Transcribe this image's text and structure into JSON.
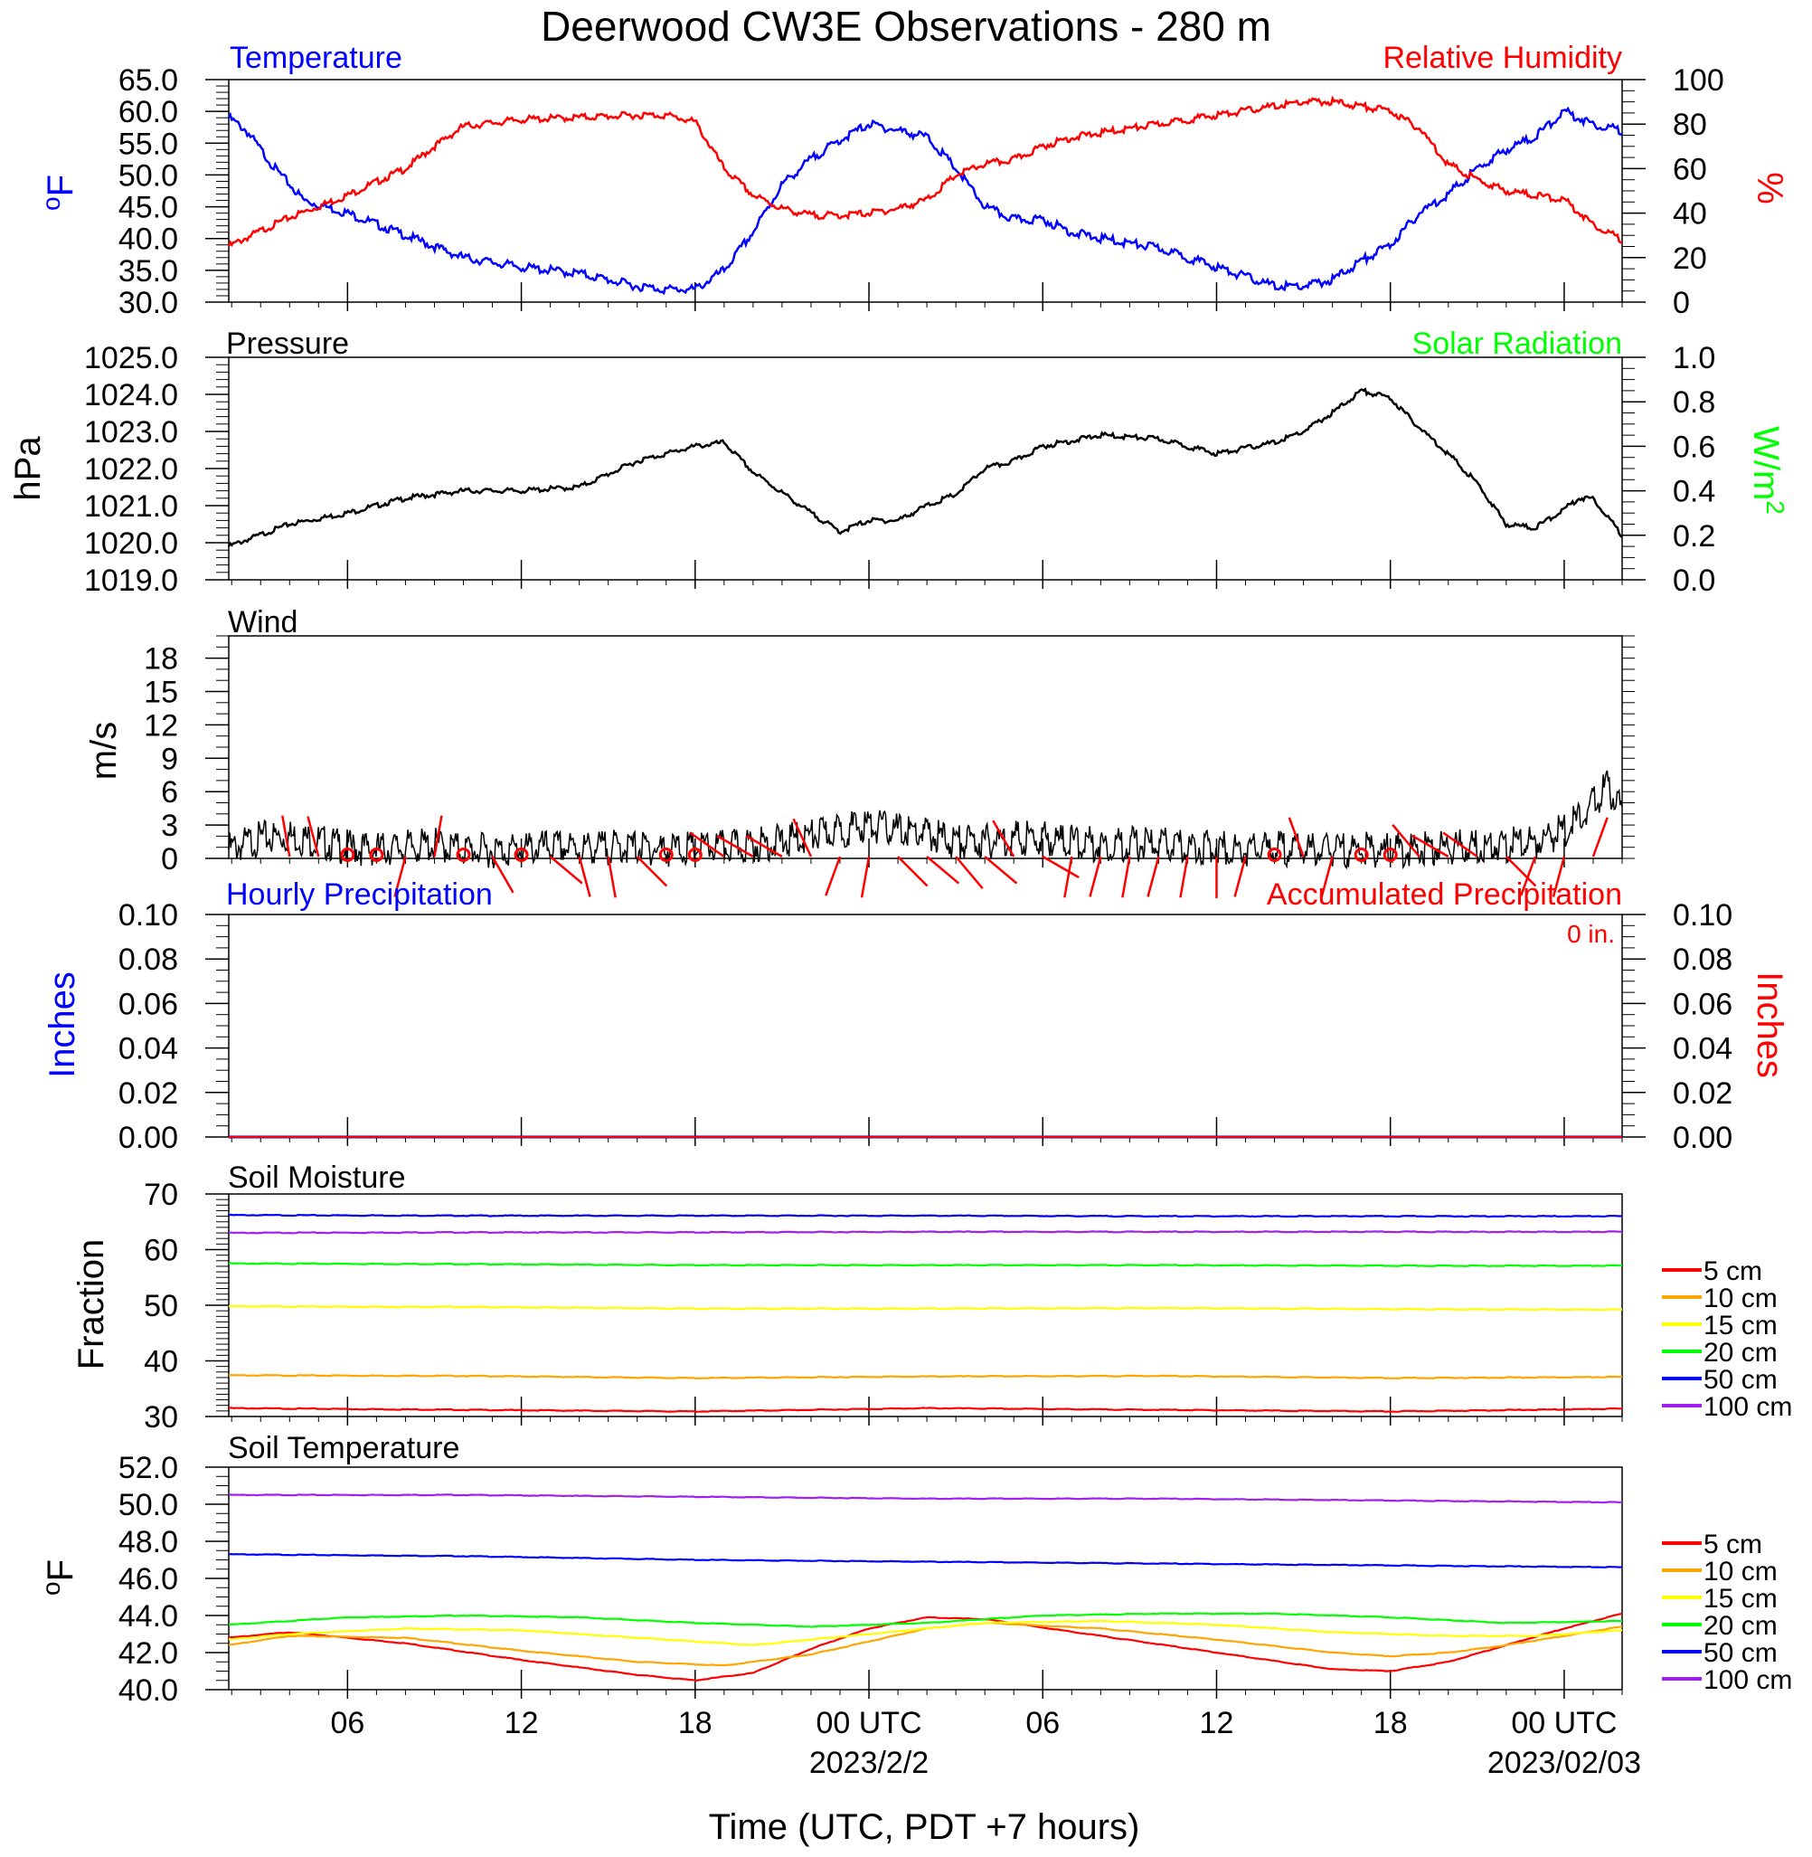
{
  "title": "Deerwood CW3E Observations - 280 m",
  "xlabel": "Time (UTC, PDT +7 hours)",
  "time_axis": {
    "range_hours": [
      -22.1,
      26.0
    ],
    "ticks": [
      {
        "h": -18,
        "label": "06"
      },
      {
        "h": -12,
        "label": "12"
      },
      {
        "h": -6,
        "label": "18"
      },
      {
        "h": 0,
        "label": "00 UTC",
        "date": "2023/2/2"
      },
      {
        "h": 6,
        "label": "06"
      },
      {
        "h": 12,
        "label": "12"
      },
      {
        "h": 18,
        "label": "18"
      },
      {
        "h": 24,
        "label": "00 UTC",
        "date": "2023/02/03"
      }
    ]
  },
  "colors": {
    "temperature": "#0000ff",
    "humidity": "#ff0000",
    "pressure": "#000000",
    "solar": "#00ff00",
    "wind": "#000000",
    "barb": "#ff0000",
    "hourly_precip": "#0000ff",
    "accum_precip": "#ff0000",
    "depths": [
      "#ff0000",
      "#ffa500",
      "#ffff00",
      "#00ff00",
      "#0000ff",
      "#a020f0"
    ]
  },
  "chart_data": [
    {
      "type": "line",
      "title": "",
      "left_label": "Temperature",
      "right_label": "Relative Humidity",
      "ylabel": "oF",
      "ylabel_right": "%",
      "ylim": [
        30,
        65
      ],
      "yticks": [
        "30.0",
        "35.0",
        "40.0",
        "45.0",
        "50.0",
        "55.0",
        "60.0",
        "65.0"
      ],
      "ylim_right": [
        0,
        100
      ],
      "yticks_right": [
        "0",
        "20",
        "40",
        "60",
        "80",
        "100"
      ],
      "series": [
        {
          "name": "Temperature",
          "axis": "left",
          "x": [
            -22.1,
            -21.5,
            -20.5,
            -19.5,
            -18,
            -16,
            -14,
            -12,
            -10,
            -8,
            -7,
            -6,
            -5,
            -4,
            -3,
            -2,
            -1,
            0,
            1,
            2,
            3,
            4,
            5,
            6,
            7,
            8,
            10,
            12,
            13,
            14,
            15,
            16,
            17,
            18,
            19,
            20,
            21,
            22,
            23,
            24,
            25,
            26
          ],
          "y": [
            59,
            57,
            51,
            46,
            44,
            40.5,
            37,
            35.5,
            34.5,
            32.5,
            32,
            32,
            35,
            41,
            48.5,
            52.5,
            55.5,
            58,
            57,
            56,
            51,
            45,
            43,
            43,
            41,
            40,
            38.5,
            35.5,
            34,
            32.5,
            32.5,
            33.5,
            36.5,
            39,
            44,
            47,
            51,
            54,
            56,
            60,
            58,
            57
          ]
        },
        {
          "name": "Relative Humidity",
          "axis": "right",
          "x": [
            -22.1,
            -21,
            -20,
            -19,
            -18,
            -16,
            -15,
            -14,
            -12,
            -10,
            -8,
            -7,
            -6,
            -5,
            -4,
            -3,
            -2,
            -1,
            0,
            1,
            2,
            3,
            4,
            5,
            6,
            7,
            8,
            10,
            12,
            14,
            15,
            16,
            17,
            18,
            19,
            19.5,
            20,
            21,
            22,
            23,
            24,
            25,
            26
          ],
          "y": [
            25,
            32,
            38,
            43,
            48,
            60,
            70,
            79,
            82,
            83,
            84,
            84,
            81,
            60,
            48,
            42,
            39,
            39,
            40,
            42,
            46,
            57,
            62,
            64,
            70,
            74,
            76,
            80,
            84,
            88,
            90,
            90,
            88,
            86,
            78,
            70,
            62,
            55,
            50,
            48,
            46,
            35,
            28
          ]
        },
        {
          "name": "Solar Radiation",
          "axis": "right",
          "x": [],
          "y": []
        }
      ]
    },
    {
      "type": "line",
      "title": "Pressure",
      "right_label": "Solar Radiation",
      "ylabel": "hPa",
      "ylabel_right": "W/m2",
      "ylim": [
        1019,
        1025
      ],
      "yticks": [
        "1019.0",
        "1020.0",
        "1021.0",
        "1022.0",
        "1023.0",
        "1024.0",
        "1025.0"
      ],
      "ylim_right": [
        0,
        1
      ],
      "yticks_right": [
        "0.0",
        "0.2",
        "0.4",
        "0.6",
        "0.8",
        "1.0"
      ],
      "series": [
        {
          "name": "Pressure",
          "x": [
            -22.1,
            -20,
            -18,
            -16,
            -14,
            -12,
            -10,
            -8,
            -6,
            -5,
            -4,
            -2,
            -1,
            0,
            1,
            2,
            3,
            4,
            5,
            6,
            8,
            10,
            12,
            14,
            15,
            16,
            17,
            18,
            19,
            20,
            21,
            22,
            23,
            24,
            24.5,
            25,
            26
          ],
          "y": [
            1019.9,
            1020.5,
            1020.8,
            1021.2,
            1021.4,
            1021.4,
            1021.5,
            1022.2,
            1022.6,
            1022.7,
            1021.9,
            1020.8,
            1020.3,
            1020.6,
            1020.6,
            1021,
            1021.3,
            1022,
            1022.2,
            1022.6,
            1022.9,
            1022.8,
            1022.4,
            1022.7,
            1023,
            1023.5,
            1024.1,
            1023.9,
            1023.1,
            1022.4,
            1021.6,
            1020.5,
            1020.4,
            1020.9,
            1021.2,
            1021.2,
            1020.2
          ]
        }
      ]
    },
    {
      "type": "line",
      "title": "Wind",
      "ylabel": "m/s",
      "ylim": [
        0,
        20
      ],
      "yticks": [
        "0",
        "3",
        "6",
        "9",
        "12",
        "15",
        "18"
      ],
      "series": [
        {
          "name": "Wind speed",
          "x": [
            -22.1,
            -21,
            -20,
            -19,
            -18,
            -17,
            -16,
            -15,
            -14,
            -13,
            -12,
            -11,
            -10,
            -9,
            -8,
            -7,
            -6,
            -5,
            -4,
            -3,
            -2,
            -1,
            0,
            1,
            2,
            3,
            4,
            5,
            6,
            7,
            8,
            9,
            10,
            11,
            12,
            13,
            14,
            15,
            16,
            17,
            18,
            19,
            20,
            21,
            22,
            23,
            24,
            24.5,
            25,
            25.5,
            26
          ],
          "y": [
            0.8,
            1.8,
            2,
            1.5,
            1,
            0.8,
            1,
            1.2,
            0.8,
            0.7,
            0.8,
            1,
            0.9,
            1,
            1,
            0.8,
            0.9,
            1,
            1.2,
            1.5,
            2,
            2.5,
            3,
            2.5,
            2.2,
            1.5,
            1.5,
            1.8,
            1.8,
            1.5,
            1.2,
            1.3,
            1.2,
            1,
            1,
            0.8,
            0.9,
            0.8,
            0.7,
            0.8,
            0.7,
            0.8,
            1,
            1,
            1.2,
            1.5,
            2.5,
            3.5,
            5,
            6.5,
            4
          ]
        },
        {
          "name": "Wind barbs",
          "x": [
            -20,
            -19,
            -18,
            -17,
            -16,
            -15,
            -14,
            -13,
            -12,
            -11,
            -10,
            -9,
            -8,
            -7,
            -6,
            -5,
            -4,
            -3,
            -2,
            -1,
            0,
            1,
            2,
            3,
            4,
            5,
            6,
            7,
            8,
            9,
            10,
            11,
            12,
            13,
            14,
            15,
            16,
            17,
            18,
            19,
            20,
            21,
            22,
            23,
            24,
            25
          ],
          "calm": [
            false,
            false,
            true,
            true,
            false,
            false,
            true,
            false,
            true,
            false,
            false,
            false,
            false,
            true,
            true,
            false,
            false,
            false,
            false,
            false,
            false,
            false,
            false,
            false,
            false,
            false,
            false,
            false,
            false,
            false,
            false,
            false,
            false,
            false,
            true,
            false,
            false,
            true,
            true,
            false,
            false,
            false,
            false,
            false,
            false,
            false
          ],
          "dir": [
            350,
            345,
            0,
            0,
            195,
            10,
            0,
            150,
            0,
            130,
            165,
            170,
            135,
            0,
            0,
            305,
            300,
            300,
            335,
            200,
            190,
            135,
            130,
            140,
            130,
            330,
            120,
            190,
            195,
            190,
            195,
            190,
            180,
            195,
            0,
            340,
            195,
            0,
            0,
            320,
            300,
            305,
            135,
            200,
            195,
            20
          ]
        }
      ]
    },
    {
      "type": "line",
      "title": "",
      "left_label": "Hourly Precipitation",
      "right_label": "Accumulated Precipitation",
      "total_text": "0 in.",
      "ylabel": "Inches",
      "ylabel_right": "Inches",
      "ylim": [
        0,
        0.1
      ],
      "yticks": [
        "0.00",
        "0.02",
        "0.04",
        "0.06",
        "0.08",
        "0.10"
      ],
      "yticks_right": [
        "0.00",
        "0.02",
        "0.04",
        "0.06",
        "0.08",
        "0.10"
      ],
      "series": [
        {
          "name": "Hourly Precipitation",
          "x": [
            -22.1,
            26
          ],
          "y": [
            0,
            0
          ]
        },
        {
          "name": "Accumulated Precipitation",
          "x": [
            -22.1,
            26
          ],
          "y": [
            0,
            0
          ]
        }
      ]
    },
    {
      "type": "line",
      "title": "Soil Moisture",
      "ylabel": "Fraction",
      "ylim": [
        30,
        70
      ],
      "yticks": [
        "30",
        "40",
        "50",
        "60",
        "70"
      ],
      "legend": "right",
      "series": [
        {
          "name": "5 cm",
          "x": [
            -22.1,
            -14,
            -6,
            2,
            10,
            18,
            26
          ],
          "y": [
            31.5,
            31.2,
            30.9,
            31.5,
            31.2,
            30.9,
            31.4
          ]
        },
        {
          "name": "10 cm",
          "x": [
            -22.1,
            -14,
            -6,
            2,
            10,
            18,
            26
          ],
          "y": [
            37.4,
            37.3,
            36.9,
            37.2,
            37.3,
            36.9,
            37.1
          ]
        },
        {
          "name": "15 cm",
          "x": [
            -22.1,
            -14,
            -6,
            2,
            10,
            18,
            26
          ],
          "y": [
            49.8,
            49.7,
            49.4,
            49.4,
            49.5,
            49.3,
            49.2
          ]
        },
        {
          "name": "20 cm",
          "x": [
            -22.1,
            -14,
            -6,
            2,
            10,
            18,
            26
          ],
          "y": [
            57.5,
            57.4,
            57.2,
            57.2,
            57.2,
            57.1,
            57.1
          ]
        },
        {
          "name": "50 cm",
          "x": [
            -22.1,
            -14,
            -6,
            2,
            10,
            18,
            26
          ],
          "y": [
            66.2,
            66.1,
            66.1,
            66.1,
            66.0,
            66.0,
            66.0
          ]
        },
        {
          "name": "100 cm",
          "x": [
            -22.1,
            -14,
            -6,
            2,
            10,
            18,
            26
          ],
          "y": [
            63.0,
            63.1,
            63.1,
            63.2,
            63.2,
            63.2,
            63.2
          ]
        }
      ]
    },
    {
      "type": "line",
      "title": "Soil Temperature",
      "ylabel": "oF",
      "ylim": [
        40,
        52
      ],
      "yticks": [
        "40.0",
        "42.0",
        "44.0",
        "46.0",
        "48.0",
        "50.0",
        "52.0"
      ],
      "legend": "right",
      "series": [
        {
          "name": "5 cm",
          "x": [
            -22.1,
            -20,
            -16,
            -12,
            -8,
            -6,
            -4,
            -2,
            0,
            2,
            4,
            8,
            12,
            16,
            18,
            20,
            22,
            24,
            26
          ],
          "y": [
            42.8,
            43.1,
            42.5,
            41.6,
            40.8,
            40.5,
            40.9,
            42.2,
            43.3,
            43.9,
            43.8,
            42.9,
            42.0,
            41.1,
            41.0,
            41.5,
            42.4,
            43.3,
            44.1
          ]
        },
        {
          "name": "10 cm",
          "x": [
            -22.1,
            -20,
            -16,
            -12,
            -8,
            -5,
            -2,
            0,
            2,
            4,
            8,
            12,
            16,
            18,
            20,
            22,
            24,
            26
          ],
          "y": [
            42.4,
            42.9,
            42.8,
            42.1,
            41.5,
            41.3,
            41.9,
            42.6,
            43.3,
            43.6,
            43.3,
            42.7,
            42.0,
            41.8,
            42.0,
            42.4,
            42.9,
            43.4
          ]
        },
        {
          "name": "15 cm",
          "x": [
            -22.1,
            -20,
            -16,
            -12,
            -8,
            -4,
            0,
            4,
            8,
            12,
            16,
            20,
            23,
            26
          ],
          "y": [
            42.7,
            43.0,
            43.3,
            43.2,
            42.8,
            42.4,
            43.0,
            43.6,
            43.7,
            43.5,
            43.1,
            42.9,
            42.9,
            43.2
          ]
        },
        {
          "name": "20 cm",
          "x": [
            -22.1,
            -18,
            -14,
            -10,
            -6,
            -2,
            2,
            6,
            10,
            14,
            18,
            22,
            26
          ],
          "y": [
            43.5,
            43.9,
            44.0,
            43.9,
            43.6,
            43.4,
            43.6,
            44.0,
            44.1,
            44.1,
            43.9,
            43.6,
            43.7
          ]
        },
        {
          "name": "50 cm",
          "x": [
            -22.1,
            -14,
            -6,
            2,
            10,
            18,
            26
          ],
          "y": [
            47.3,
            47.2,
            47.0,
            46.9,
            46.8,
            46.7,
            46.6
          ]
        },
        {
          "name": "100 cm",
          "x": [
            -22.1,
            -14,
            -6,
            2,
            10,
            18,
            26
          ],
          "y": [
            50.5,
            50.5,
            50.4,
            50.3,
            50.3,
            50.2,
            50.1
          ]
        }
      ]
    }
  ]
}
